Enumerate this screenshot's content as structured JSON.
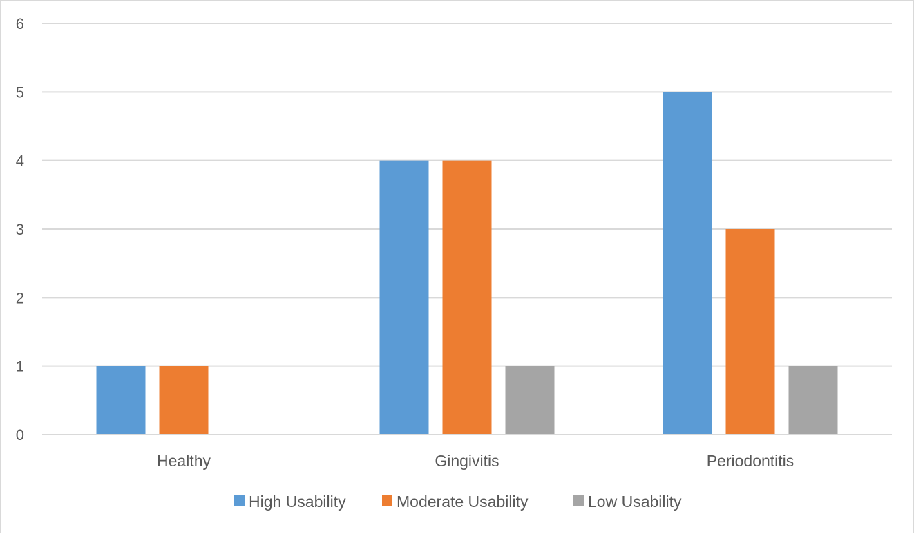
{
  "chart_data": {
    "type": "bar",
    "title": "",
    "xlabel": "",
    "ylabel": "",
    "categories": [
      "Healthy",
      "Gingivitis",
      "Periodontitis"
    ],
    "series": [
      {
        "name": "High Usability",
        "color": "#5b9bd5",
        "values": [
          1,
          4,
          5
        ]
      },
      {
        "name": "Moderate Usability",
        "color": "#ed7d31",
        "values": [
          1,
          4,
          3
        ]
      },
      {
        "name": "Low Usability",
        "color": "#a5a5a5",
        "values": [
          0,
          1,
          1
        ]
      }
    ],
    "ylim": [
      0,
      6
    ],
    "yticks": [
      "0",
      "1",
      "2",
      "3",
      "4",
      "5",
      "6"
    ],
    "grid": true,
    "legend_position": "bottom"
  }
}
